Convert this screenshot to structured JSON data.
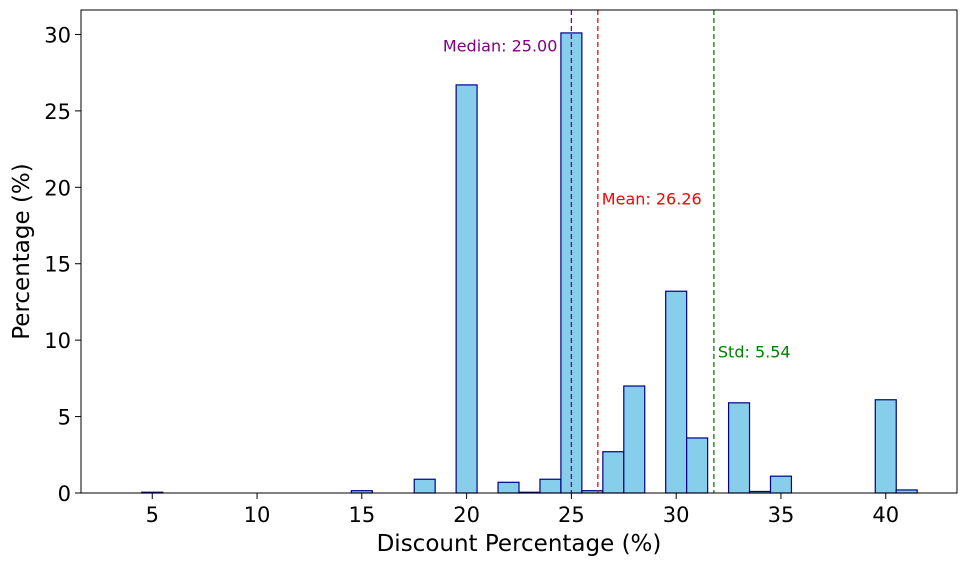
{
  "chart_data": {
    "type": "bar",
    "subtype": "histogram",
    "xlabel": "Discount Percentage (%)",
    "ylabel": "Percentage (%)",
    "xlim": [
      1.6,
      43.4
    ],
    "ylim": [
      0,
      31.6
    ],
    "xticks": [
      5,
      10,
      15,
      20,
      25,
      30,
      35,
      40
    ],
    "yticks": [
      0,
      5,
      10,
      15,
      20,
      25,
      30
    ],
    "bin_width": 1.0,
    "bars": [
      {
        "x0": 4.5,
        "x1": 5.5,
        "value": 0.05
      },
      {
        "x0": 14.5,
        "x1": 15.5,
        "value": 0.15
      },
      {
        "x0": 17.5,
        "x1": 18.5,
        "value": 0.9
      },
      {
        "x0": 19.5,
        "x1": 20.5,
        "value": 26.7
      },
      {
        "x0": 21.5,
        "x1": 22.5,
        "value": 0.7
      },
      {
        "x0": 22.5,
        "x1": 23.5,
        "value": 0.05
      },
      {
        "x0": 23.5,
        "x1": 24.5,
        "value": 0.9
      },
      {
        "x0": 24.5,
        "x1": 25.5,
        "value": 30.1
      },
      {
        "x0": 25.5,
        "x1": 26.5,
        "value": 0.15
      },
      {
        "x0": 26.5,
        "x1": 27.5,
        "value": 2.7
      },
      {
        "x0": 27.5,
        "x1": 28.5,
        "value": 7.0
      },
      {
        "x0": 29.5,
        "x1": 30.5,
        "value": 13.2
      },
      {
        "x0": 30.5,
        "x1": 31.5,
        "value": 3.6
      },
      {
        "x0": 32.5,
        "x1": 33.5,
        "value": 5.9
      },
      {
        "x0": 33.5,
        "x1": 34.5,
        "value": 0.1
      },
      {
        "x0": 34.5,
        "x1": 35.5,
        "value": 1.1
      },
      {
        "x0": 39.5,
        "x1": 40.5,
        "value": 6.1
      },
      {
        "x0": 40.5,
        "x1": 41.5,
        "value": 0.2
      }
    ],
    "bar_fill": "#87CEEB",
    "bar_edge": "#00008B",
    "lines": [
      {
        "x": 25.0,
        "label": "Median: 25.00",
        "color": "#800080",
        "label_side": "left",
        "label_y": 29.2
      },
      {
        "x": 26.26,
        "label": "Mean: 26.26",
        "color": "#FF0000",
        "label_side": "right",
        "label_y": 19.2
      },
      {
        "x": 31.8,
        "label": "Std: 5.54",
        "color": "#008000",
        "label_side": "right",
        "label_y": 9.2
      }
    ],
    "grid": false
  }
}
